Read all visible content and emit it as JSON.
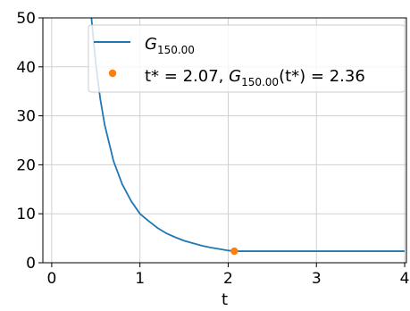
{
  "chart_data": {
    "type": "line",
    "xlabel": "t",
    "ylabel": "",
    "xlim": [
      -0.1,
      4.02
    ],
    "ylim": [
      0,
      50
    ],
    "xticks": [
      0,
      1,
      2,
      3,
      4
    ],
    "yticks": [
      0,
      10,
      20,
      30,
      40,
      50
    ],
    "grid": true,
    "legend_placement": "top-right",
    "series": [
      {
        "name": "G_150.00",
        "legend_main": "G",
        "legend_sub": "150.00",
        "color": "#1f77b4",
        "x": [
          0.45,
          0.5,
          0.55,
          0.6,
          0.7,
          0.8,
          0.9,
          1.0,
          1.1,
          1.2,
          1.3,
          1.4,
          1.5,
          1.6,
          1.7,
          1.8,
          1.9,
          2.0,
          2.07,
          2.5,
          3.0,
          3.5,
          4.0
        ],
        "y": [
          50.0,
          40.6,
          33.5,
          28.2,
          20.8,
          16.0,
          12.6,
          10.0,
          8.5,
          7.1,
          6.0,
          5.2,
          4.5,
          4.0,
          3.5,
          3.1,
          2.8,
          2.5,
          2.36,
          2.36,
          2.36,
          2.36,
          2.36
        ]
      },
      {
        "name": "t* = 2.07, G_150.00(t*) = 2.36",
        "legend_prefix": "t* = 2.07, ",
        "legend_main": "G",
        "legend_sub": "150.00",
        "legend_suffix": "(t*) = 2.36",
        "color": "#ff7f0e",
        "points": [
          {
            "x": 2.07,
            "y": 2.36
          }
        ]
      }
    ]
  }
}
